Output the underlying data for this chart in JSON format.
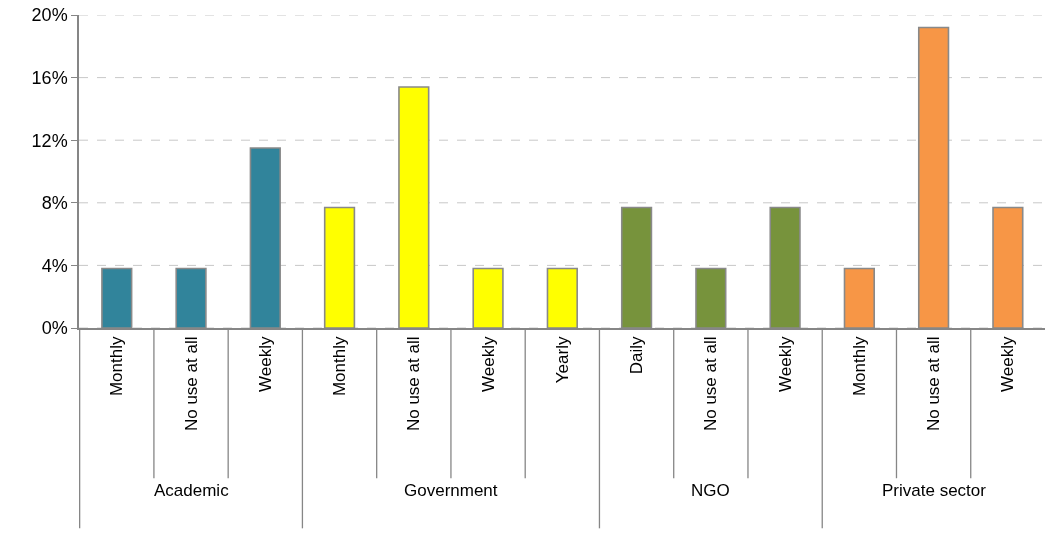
{
  "chart_data": {
    "type": "bar",
    "categories": [
      "Monthly",
      "No use at all",
      "Weekly",
      "Monthly",
      "No use at all",
      "Weekly",
      "Yearly",
      "Daily",
      "No use at all",
      "Weekly",
      "Monthly",
      "No use at all",
      "Weekly"
    ],
    "series": [
      {
        "color": "#31849b",
        "values": [
          3.8,
          3.8,
          11.5,
          null,
          null,
          null,
          null,
          null,
          null,
          null,
          null,
          null,
          null
        ]
      },
      {
        "color": "#ffff00",
        "values": [
          null,
          null,
          null,
          7.7,
          15.4,
          3.8,
          3.8,
          null,
          null,
          null,
          null,
          null,
          null
        ]
      },
      {
        "color": "#77933c",
        "values": [
          null,
          null,
          null,
          null,
          null,
          null,
          null,
          7.7,
          3.8,
          7.7,
          null,
          null,
          null
        ]
      },
      {
        "color": "#f79646",
        "values": [
          null,
          null,
          null,
          null,
          null,
          null,
          null,
          null,
          null,
          null,
          3.8,
          19.2,
          7.7
        ]
      }
    ],
    "annotations": [
      "Academic",
      "Government",
      "NGO",
      "Private sector"
    ],
    "ylim": [
      0,
      20
    ],
    "yticks": [
      {
        "value": 0,
        "label": "0%"
      },
      {
        "value": 4,
        "label": "4%"
      },
      {
        "value": 8,
        "label": "8%"
      },
      {
        "value": 12,
        "label": "12%"
      },
      {
        "value": 16,
        "label": "16%"
      },
      {
        "value": 20,
        "label": "20%"
      }
    ],
    "grid": "y"
  }
}
